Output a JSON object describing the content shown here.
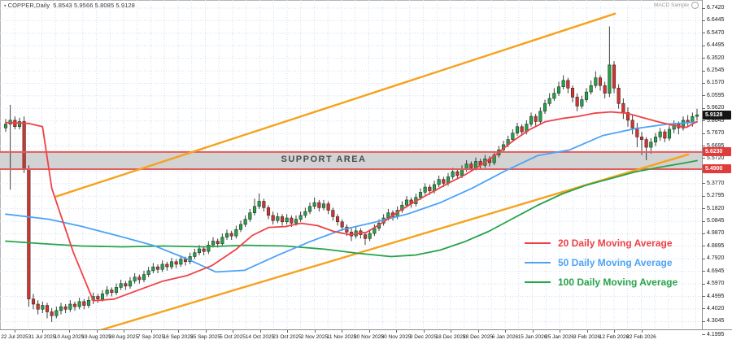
{
  "window": {
    "title_symbol": "COPPER,Daily",
    "title_ohlc": "5.8543 5.9566 5.8085 5.9128",
    "indicator_label": "MACD Sample"
  },
  "annotations": {
    "support_area_label": "SUPPORT AREA",
    "current_price": "5.9128",
    "support_upper_price": "5.6230",
    "support_lower_price": "5.4900"
  },
  "legend": [
    {
      "label": "20 Daily Moving Average",
      "color": "#ef4146"
    },
    {
      "label": "50 Daily Moving Average",
      "color": "#4da3f5"
    },
    {
      "label": "100 Daily Moving Average",
      "color": "#27a348"
    }
  ],
  "colors": {
    "grid": "#cfdff2",
    "bull": "#26a248",
    "bear": "#d23430",
    "wick": "#2a2a2a",
    "candle_border": "#1f1f1f",
    "ma20": "#ef4146",
    "ma50": "#4da3f5",
    "ma100": "#27a348",
    "trendline": "#f6a21d",
    "band_fill": "#d3d3d3",
    "band_border": "#e25c5c",
    "price_box_bg": "#141414",
    "support_box_bg": "#e03c3c",
    "axis_text": "#1a1a1a"
  },
  "chart_data": {
    "type": "candlestick",
    "symbol": "COPPER",
    "timeframe": "Daily",
    "title": "COPPER,Daily",
    "grid": true,
    "y_top_label": 6.742,
    "y_bottom_label": 4.1995,
    "y_label_step": 0.0975,
    "y_labels": [
      "6.7420",
      "6.6445",
      "6.5470",
      "6.4495",
      "6.3520",
      "6.2545",
      "6.1570",
      "6.0595",
      "5.9620",
      "5.8645",
      "5.7670",
      "5.6695",
      "5.5720",
      "5.4745",
      "5.3770",
      "5.2795",
      "5.1820",
      "5.0845",
      "4.9870",
      "4.8895",
      "4.7920",
      "4.6945",
      "4.5970",
      "4.4995",
      "4.4020",
      "4.3045",
      "4.1995"
    ],
    "x_labels": [
      "22 Jul 2025",
      "31 Jul 2025",
      "10 Aug 2025",
      "19 Aug 2025",
      "28 Aug 2025",
      "7 Sep 2025",
      "16 Sep 2025",
      "25 Sep 2025",
      "5 Oct 2025",
      "14 Oct 2025",
      "23 Oct 2025",
      "2 Nov 2025",
      "11 Nov 2025",
      "20 Nov 2025",
      "30 Nov 2025",
      "9 Dec 2025",
      "18 Dec 2025",
      "28 Dec 2025",
      "6 Jan 2026",
      "15 Jan 2026",
      "25 Jan 2026",
      "3 Feb 2026",
      "12 Feb 2026",
      "22 Feb 2026"
    ],
    "support_zone": {
      "upper": 5.623,
      "lower": 5.49,
      "label": "SUPPORT AREA"
    },
    "current_price": 5.9128,
    "candles": [
      [
        5.81,
        5.88,
        5.78,
        5.84
      ],
      [
        5.84,
        5.99,
        5.33,
        5.87
      ],
      [
        5.87,
        5.9,
        5.8,
        5.82
      ],
      [
        5.82,
        5.89,
        5.8,
        5.86
      ],
      [
        5.86,
        5.9,
        5.46,
        5.49
      ],
      [
        5.49,
        5.52,
        4.42,
        4.48
      ],
      [
        4.48,
        4.52,
        4.4,
        4.44
      ],
      [
        4.44,
        4.47,
        4.36,
        4.4
      ],
      [
        4.4,
        4.46,
        4.37,
        4.43
      ],
      [
        4.43,
        4.45,
        4.33,
        4.38
      ],
      [
        4.38,
        4.41,
        4.3,
        4.35
      ],
      [
        4.35,
        4.42,
        4.33,
        4.39
      ],
      [
        4.39,
        4.45,
        4.36,
        4.42
      ],
      [
        4.42,
        4.44,
        4.37,
        4.4
      ],
      [
        4.4,
        4.47,
        4.38,
        4.44
      ],
      [
        4.44,
        4.46,
        4.39,
        4.42
      ],
      [
        4.42,
        4.49,
        4.4,
        4.46
      ],
      [
        4.46,
        4.48,
        4.4,
        4.43
      ],
      [
        4.43,
        4.5,
        4.41,
        4.47
      ],
      [
        4.47,
        4.53,
        4.44,
        4.5
      ],
      [
        4.5,
        4.52,
        4.45,
        4.48
      ],
      [
        4.48,
        4.55,
        4.46,
        4.52
      ],
      [
        4.52,
        4.58,
        4.5,
        4.55
      ],
      [
        4.55,
        4.57,
        4.5,
        4.53
      ],
      [
        4.53,
        4.6,
        4.51,
        4.57
      ],
      [
        4.57,
        4.63,
        4.55,
        4.6
      ],
      [
        4.6,
        4.62,
        4.55,
        4.58
      ],
      [
        4.58,
        4.65,
        4.56,
        4.62
      ],
      [
        4.62,
        4.68,
        4.6,
        4.65
      ],
      [
        4.65,
        4.67,
        4.6,
        4.63
      ],
      [
        4.63,
        4.7,
        4.61,
        4.67
      ],
      [
        4.67,
        4.73,
        4.65,
        4.7
      ],
      [
        4.7,
        4.76,
        4.68,
        4.73
      ],
      [
        4.73,
        4.75,
        4.68,
        4.71
      ],
      [
        4.71,
        4.78,
        4.69,
        4.75
      ],
      [
        4.75,
        4.77,
        4.7,
        4.73
      ],
      [
        4.73,
        4.8,
        4.71,
        4.77
      ],
      [
        4.77,
        4.79,
        4.72,
        4.75
      ],
      [
        4.75,
        4.82,
        4.73,
        4.79
      ],
      [
        4.79,
        4.81,
        4.74,
        4.77
      ],
      [
        4.77,
        4.84,
        4.75,
        4.81
      ],
      [
        4.81,
        4.87,
        4.79,
        4.84
      ],
      [
        4.84,
        4.9,
        4.82,
        4.87
      ],
      [
        4.87,
        4.89,
        4.82,
        4.85
      ],
      [
        4.85,
        4.93,
        4.83,
        4.9
      ],
      [
        4.9,
        4.96,
        4.88,
        4.93
      ],
      [
        4.93,
        4.95,
        4.88,
        4.91
      ],
      [
        4.91,
        4.99,
        4.89,
        4.96
      ],
      [
        4.96,
        5.02,
        4.94,
        4.99
      ],
      [
        4.99,
        5.01,
        4.94,
        4.97
      ],
      [
        4.97,
        5.05,
        4.95,
        5.02
      ],
      [
        5.02,
        5.09,
        5.0,
        5.06
      ],
      [
        5.06,
        5.13,
        5.04,
        5.1
      ],
      [
        5.1,
        5.18,
        5.08,
        5.15
      ],
      [
        5.15,
        5.26,
        5.13,
        5.2
      ],
      [
        5.2,
        5.3,
        5.18,
        5.24
      ],
      [
        5.24,
        5.26,
        5.16,
        5.19
      ],
      [
        5.19,
        5.21,
        5.1,
        5.13
      ],
      [
        5.13,
        5.16,
        5.06,
        5.09
      ],
      [
        5.09,
        5.15,
        5.07,
        5.12
      ],
      [
        5.12,
        5.14,
        5.05,
        5.08
      ],
      [
        5.08,
        5.14,
        5.06,
        5.11
      ],
      [
        5.11,
        5.13,
        5.04,
        5.07
      ],
      [
        5.07,
        5.13,
        5.05,
        5.1
      ],
      [
        5.1,
        5.16,
        5.08,
        5.13
      ],
      [
        5.13,
        5.19,
        5.11,
        5.16
      ],
      [
        5.16,
        5.23,
        5.14,
        5.2
      ],
      [
        5.2,
        5.27,
        5.18,
        5.23
      ],
      [
        5.23,
        5.25,
        5.16,
        5.19
      ],
      [
        5.19,
        5.25,
        5.17,
        5.22
      ],
      [
        5.22,
        5.24,
        5.14,
        5.17
      ],
      [
        5.17,
        5.19,
        5.09,
        5.12
      ],
      [
        5.12,
        5.14,
        5.05,
        5.08
      ],
      [
        5.08,
        5.1,
        5.01,
        5.04
      ],
      [
        5.04,
        5.06,
        4.97,
        5.0
      ],
      [
        5.0,
        5.03,
        4.93,
        4.97
      ],
      [
        4.97,
        5.04,
        4.95,
        5.01
      ],
      [
        5.01,
        5.03,
        4.95,
        4.98
      ],
      [
        4.98,
        5.0,
        4.9,
        4.95
      ],
      [
        4.95,
        5.02,
        4.93,
        4.99
      ],
      [
        4.99,
        5.06,
        4.97,
        5.03
      ],
      [
        5.03,
        5.1,
        5.01,
        5.07
      ],
      [
        5.07,
        5.14,
        5.05,
        5.11
      ],
      [
        5.11,
        5.18,
        5.09,
        5.15
      ],
      [
        5.15,
        5.17,
        5.09,
        5.12
      ],
      [
        5.12,
        5.2,
        5.1,
        5.17
      ],
      [
        5.17,
        5.24,
        5.15,
        5.21
      ],
      [
        5.21,
        5.28,
        5.19,
        5.25
      ],
      [
        5.25,
        5.27,
        5.19,
        5.22
      ],
      [
        5.22,
        5.3,
        5.2,
        5.27
      ],
      [
        5.27,
        5.34,
        5.25,
        5.31
      ],
      [
        5.31,
        5.38,
        5.29,
        5.35
      ],
      [
        5.35,
        5.37,
        5.29,
        5.32
      ],
      [
        5.32,
        5.4,
        5.3,
        5.37
      ],
      [
        5.37,
        5.44,
        5.35,
        5.41
      ],
      [
        5.41,
        5.43,
        5.35,
        5.38
      ],
      [
        5.38,
        5.46,
        5.36,
        5.43
      ],
      [
        5.43,
        5.5,
        5.41,
        5.47
      ],
      [
        5.47,
        5.49,
        5.41,
        5.44
      ],
      [
        5.44,
        5.52,
        5.42,
        5.49
      ],
      [
        5.49,
        5.56,
        5.47,
        5.53
      ],
      [
        5.53,
        5.55,
        5.47,
        5.5
      ],
      [
        5.5,
        5.58,
        5.48,
        5.55
      ],
      [
        5.55,
        5.57,
        5.49,
        5.52
      ],
      [
        5.52,
        5.6,
        5.5,
        5.57
      ],
      [
        5.57,
        5.59,
        5.51,
        5.54
      ],
      [
        5.54,
        5.63,
        5.52,
        5.6
      ],
      [
        5.6,
        5.67,
        5.58,
        5.64
      ],
      [
        5.64,
        5.71,
        5.62,
        5.68
      ],
      [
        5.68,
        5.75,
        5.66,
        5.72
      ],
      [
        5.72,
        5.8,
        5.7,
        5.77
      ],
      [
        5.77,
        5.85,
        5.75,
        5.82
      ],
      [
        5.82,
        5.84,
        5.75,
        5.78
      ],
      [
        5.78,
        5.87,
        5.76,
        5.84
      ],
      [
        5.84,
        5.93,
        5.82,
        5.9
      ],
      [
        5.9,
        5.92,
        5.82,
        5.86
      ],
      [
        5.86,
        5.97,
        5.84,
        5.94
      ],
      [
        5.94,
        6.03,
        5.92,
        6.0
      ],
      [
        6.0,
        6.08,
        5.98,
        6.04
      ],
      [
        6.04,
        6.12,
        6.02,
        6.08
      ],
      [
        6.08,
        6.17,
        6.06,
        6.13
      ],
      [
        6.13,
        6.22,
        6.11,
        6.18
      ],
      [
        6.18,
        6.2,
        6.08,
        6.12
      ],
      [
        6.12,
        6.14,
        6.01,
        6.05
      ],
      [
        6.05,
        6.08,
        5.94,
        5.98
      ],
      [
        5.98,
        6.06,
        5.96,
        6.03
      ],
      [
        6.03,
        6.12,
        6.01,
        6.09
      ],
      [
        6.09,
        6.18,
        6.07,
        6.14
      ],
      [
        6.14,
        6.25,
        6.12,
        6.2
      ],
      [
        6.2,
        6.22,
        6.1,
        6.14
      ],
      [
        6.14,
        6.17,
        6.04,
        6.08
      ],
      [
        6.08,
        6.6,
        6.05,
        6.3
      ],
      [
        6.3,
        6.33,
        6.08,
        6.12
      ],
      [
        6.12,
        6.15,
        5.96,
        6.0
      ],
      [
        6.0,
        6.04,
        5.88,
        5.93
      ],
      [
        5.93,
        5.97,
        5.82,
        5.87
      ],
      [
        5.87,
        5.91,
        5.76,
        5.81
      ],
      [
        5.81,
        5.85,
        5.66,
        5.74
      ],
      [
        5.74,
        5.78,
        5.6,
        5.72
      ],
      [
        5.72,
        5.74,
        5.56,
        5.66
      ],
      [
        5.66,
        5.73,
        5.61,
        5.7
      ],
      [
        5.7,
        5.77,
        5.67,
        5.74
      ],
      [
        5.74,
        5.81,
        5.71,
        5.78
      ],
      [
        5.78,
        5.8,
        5.7,
        5.73
      ],
      [
        5.73,
        5.83,
        5.71,
        5.8
      ],
      [
        5.8,
        5.87,
        5.77,
        5.84
      ],
      [
        5.84,
        5.86,
        5.76,
        5.81
      ],
      [
        5.81,
        5.9,
        5.79,
        5.87
      ],
      [
        5.87,
        5.91,
        5.82,
        5.85
      ],
      [
        5.85,
        5.93,
        5.82,
        5.9
      ],
      [
        5.9,
        5.96,
        5.87,
        5.9128
      ]
    ],
    "overlays": {
      "ma20": {
        "name": "20 Daily Moving Average",
        "points": [
          [
            0,
            5.852
          ],
          [
            5,
            5.845
          ],
          [
            8,
            5.82
          ],
          [
            10,
            5.34
          ],
          [
            14.7,
            4.84
          ],
          [
            19,
            4.466
          ],
          [
            23.5,
            4.479
          ],
          [
            28.8,
            4.549
          ],
          [
            34.1,
            4.619
          ],
          [
            39.4,
            4.663
          ],
          [
            44.7,
            4.739
          ],
          [
            50,
            4.866
          ],
          [
            53.5,
            4.974
          ],
          [
            57.1,
            5.037
          ],
          [
            60.6,
            5.043
          ],
          [
            64.1,
            5.069
          ],
          [
            67.7,
            5.05
          ],
          [
            71.2,
            5.005
          ],
          [
            74.7,
            4.98
          ],
          [
            78.3,
            4.999
          ],
          [
            81.8,
            5.075
          ],
          [
            85.3,
            5.163
          ],
          [
            88.9,
            5.239
          ],
          [
            92.4,
            5.309
          ],
          [
            95.9,
            5.378
          ],
          [
            99.5,
            5.442
          ],
          [
            103,
            5.518
          ],
          [
            106.5,
            5.606
          ],
          [
            110,
            5.707
          ],
          [
            113.6,
            5.796
          ],
          [
            117.1,
            5.859
          ],
          [
            120.7,
            5.884
          ],
          [
            124.2,
            5.9
          ],
          [
            127.7,
            5.925
          ],
          [
            131.3,
            5.935
          ],
          [
            134.8,
            5.925
          ],
          [
            138.3,
            5.89
          ],
          [
            141.9,
            5.855
          ],
          [
            144.9,
            5.83
          ],
          [
            147.7,
            5.815
          ],
          [
            150,
            5.86
          ]
        ]
      },
      "ma50": {
        "name": "50 Daily Moving Average",
        "points": [
          [
            0,
            5.14
          ],
          [
            9.4,
            5.1
          ],
          [
            16.4,
            5.045
          ],
          [
            25.3,
            4.962
          ],
          [
            32.3,
            4.893
          ],
          [
            39.4,
            4.791
          ],
          [
            45.6,
            4.69
          ],
          [
            51.8,
            4.703
          ],
          [
            58.8,
            4.817
          ],
          [
            65.9,
            4.924
          ],
          [
            73,
            5.019
          ],
          [
            80,
            5.076
          ],
          [
            87.1,
            5.14
          ],
          [
            94.2,
            5.228
          ],
          [
            101.2,
            5.342
          ],
          [
            108.3,
            5.475
          ],
          [
            115.4,
            5.595
          ],
          [
            122.4,
            5.64
          ],
          [
            129.5,
            5.75
          ],
          [
            136.6,
            5.805
          ],
          [
            143.6,
            5.84
          ],
          [
            150,
            5.855
          ]
        ]
      },
      "ma100": {
        "name": "100 Daily Moving Average",
        "points": [
          [
            0,
            4.93
          ],
          [
            7.6,
            4.911
          ],
          [
            16.4,
            4.892
          ],
          [
            25.3,
            4.886
          ],
          [
            34.1,
            4.892
          ],
          [
            42.9,
            4.886
          ],
          [
            51.8,
            4.898
          ],
          [
            60.6,
            4.892
          ],
          [
            69.4,
            4.867
          ],
          [
            76.5,
            4.835
          ],
          [
            83.6,
            4.81
          ],
          [
            88.9,
            4.822
          ],
          [
            94.2,
            4.86
          ],
          [
            99.5,
            4.924
          ],
          [
            104.8,
            5.006
          ],
          [
            110.1,
            5.107
          ],
          [
            115.4,
            5.208
          ],
          [
            120.7,
            5.297
          ],
          [
            126,
            5.366
          ],
          [
            131.3,
            5.417
          ],
          [
            136.6,
            5.468
          ],
          [
            141.9,
            5.505
          ],
          [
            147.2,
            5.537
          ],
          [
            150,
            5.556
          ]
        ]
      },
      "trendlines": [
        {
          "name": "ascending-channel-upper",
          "from": [
            10.8,
            5.275
          ],
          "to": [
            132.2,
            6.699
          ]
        },
        {
          "name": "ascending-channel-lower",
          "from": [
            20.0,
            4.232
          ],
          "to": [
            148.1,
            5.604
          ]
        }
      ]
    }
  }
}
